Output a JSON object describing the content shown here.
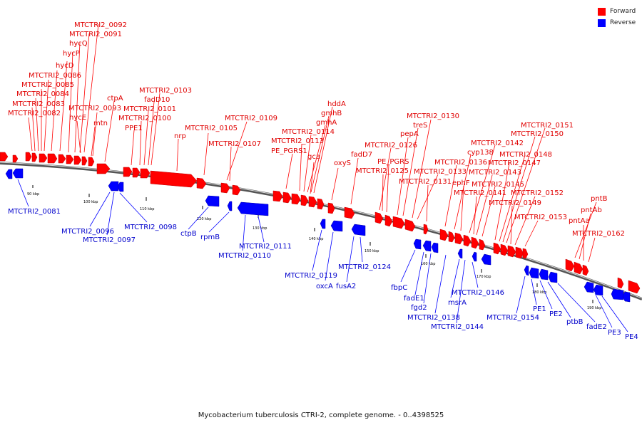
{
  "legend": {
    "items": [
      {
        "label": "Forward",
        "color": "#ff0000"
      },
      {
        "label": "Reverse",
        "color": "#0000ff"
      }
    ]
  },
  "caption": "Mycobacterium tuberculosis CTRI-2, complete genome. - 0..4398525",
  "colors": {
    "forward": "#ff0000",
    "reverse": "#0000ff",
    "label_forward": "#e00000",
    "label_reverse": "#0000cc",
    "backbone": "#777777"
  },
  "ticks": [
    "90 kbp",
    "100 kbp",
    "110 kbp",
    "120 kbp",
    "130 kbp",
    "140 kbp",
    "150 kbp",
    "160 kbp",
    "170 kbp",
    "180 kbp",
    "190 kbp"
  ],
  "forward_labels": [
    "MTCTRI2_0092",
    "MTCTRI2_0091",
    "hycQ",
    "hycP",
    "hycD",
    "MTCTRI2_0086",
    "MTCTRI2_0085",
    "MTCTRI2_0084",
    "MTCTRI2_0083",
    "MTCTRI2_0082",
    "MTCTRI2_0093",
    "hycE",
    "mtn",
    "ctpA",
    "MTCTRI2_0103",
    "fadD10",
    "MTCTRI2_0101",
    "MTCTRI2_0100",
    "PPE1",
    "nrp",
    "MTCTRI2_0105",
    "MTCTRI2_0109",
    "MTCTRI2_0107",
    "hddA",
    "gmhB",
    "gmhA",
    "MTCTRI2_0114",
    "MTCTRI2_0113",
    "PE_PGRS1",
    "gca",
    "oxyS",
    "fadD7",
    "MTCTRI2_0126",
    "MTCTRI2_0125",
    "PE_PGRS",
    "pepA",
    "treS",
    "MTCTRI2_0130",
    "MTCTRI2_0133",
    "MTCTRI2_0131",
    "MTCTRI2_0136",
    "cyp138",
    "MTCTRI2_0142",
    "ephF",
    "MTCTRI2_0141",
    "MTCTRI2_0143",
    "MTCTRI2_0145",
    "MTCTRI2_0147",
    "MTCTRI2_0148",
    "MTCTRI2_0150",
    "MTCTRI2_0151",
    "MTCTRI2_0149",
    "MTCTRI2_0152",
    "MTCTRI2_0153",
    "pntB",
    "pntAb",
    "pntAa",
    "MTCTRI2_0162"
  ],
  "reverse_labels": [
    "MTCTRI2_0081",
    "MTCTRI2_0096",
    "MTCTRI2_0097",
    "MTCTRI2_0098",
    "ctpB",
    "rpmB",
    "MTCTRI2_0111",
    "MTCTRI2_0110",
    "MTCTRI2_0119",
    "oxcA",
    "fusA2",
    "MTCTRI2_0124",
    "fbpC",
    "fadE1",
    "fgd2",
    "MTCTRI2_0138",
    "msrA",
    "MTCTRI2_0144",
    "MTCTRI2_0146",
    "MTCTRI2_0154",
    "PE1",
    "PE2",
    "ptbB",
    "fadE2",
    "PE3",
    "PE4"
  ]
}
